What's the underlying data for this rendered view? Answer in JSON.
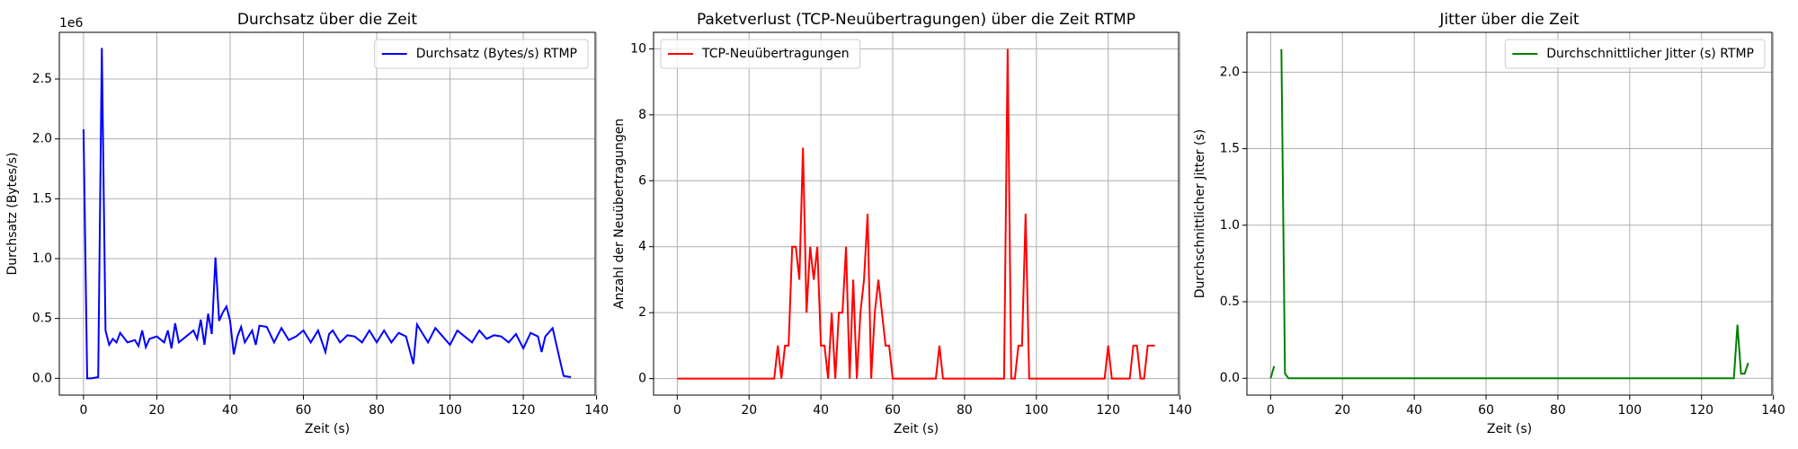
{
  "chart_data": [
    {
      "type": "line",
      "title": "Durchsatz über die Zeit",
      "xlabel": "Zeit (s)",
      "ylabel": "Durchsatz (Bytes/s)",
      "y_offset_label": "1e6",
      "x": [
        0,
        1,
        2,
        4,
        5,
        6,
        7,
        8,
        9,
        10,
        12,
        14,
        15,
        16,
        17,
        18,
        20,
        22,
        23,
        24,
        25,
        26,
        28,
        30,
        31,
        32,
        33,
        34,
        35,
        36,
        37,
        38,
        39,
        40,
        41,
        42,
        43,
        44,
        46,
        47,
        48,
        50,
        52,
        54,
        56,
        58,
        60,
        62,
        64,
        66,
        67,
        68,
        70,
        72,
        74,
        76,
        78,
        80,
        82,
        84,
        86,
        88,
        90,
        91,
        92,
        94,
        96,
        98,
        100,
        102,
        104,
        106,
        108,
        110,
        112,
        114,
        116,
        118,
        120,
        122,
        124,
        125,
        126,
        128,
        130,
        131,
        133
      ],
      "series": [
        {
          "name": "Durchsatz (Bytes/s) RTMP",
          "color": "#0000ff",
          "values": [
            2.08,
            0,
            0,
            0.01,
            2.76,
            0.4,
            0.28,
            0.33,
            0.3,
            0.38,
            0.3,
            0.32,
            0.27,
            0.4,
            0.26,
            0.33,
            0.35,
            0.3,
            0.4,
            0.25,
            0.46,
            0.3,
            0.35,
            0.4,
            0.33,
            0.49,
            0.28,
            0.54,
            0.37,
            1.01,
            0.48,
            0.55,
            0.6,
            0.48,
            0.2,
            0.35,
            0.43,
            0.3,
            0.4,
            0.28,
            0.44,
            0.43,
            0.3,
            0.42,
            0.32,
            0.35,
            0.4,
            0.3,
            0.4,
            0.22,
            0.37,
            0.4,
            0.3,
            0.36,
            0.35,
            0.3,
            0.4,
            0.3,
            0.4,
            0.3,
            0.38,
            0.35,
            0.12,
            0.45,
            0.4,
            0.3,
            0.42,
            0.35,
            0.28,
            0.4,
            0.35,
            0.3,
            0.4,
            0.33,
            0.36,
            0.35,
            0.3,
            0.37,
            0.25,
            0.38,
            0.35,
            0.22,
            0.35,
            0.42,
            0.15,
            0.02,
            0.01
          ]
        }
      ],
      "xlim": [
        -6.6,
        139.6
      ],
      "ylim": [
        -0.14,
        2.89
      ],
      "xticks": [
        0,
        20,
        40,
        60,
        80,
        100,
        120,
        140
      ],
      "yticks": [
        {
          "value": 0,
          "label": "0.0"
        },
        0.5,
        {
          "value": 1,
          "label": "1.0"
        },
        1.5,
        {
          "value": 2,
          "label": "2.0"
        },
        2.5
      ],
      "grid": true,
      "legend": "upper right"
    },
    {
      "type": "line",
      "title": "Paketverlust (TCP-Neuübertragungen) über die Zeit RTMP",
      "xlabel": "Zeit (s)",
      "ylabel": "Anzahl der Neuübertragungen",
      "x": [
        0,
        27,
        28,
        29,
        30,
        31,
        32,
        33,
        34,
        35,
        36,
        37,
        38,
        39,
        40,
        41,
        42,
        43,
        44,
        45,
        46,
        47,
        48,
        49,
        50,
        51,
        52,
        53,
        54,
        55,
        56,
        57,
        58,
        59,
        60,
        72,
        73,
        74,
        91,
        92,
        93,
        94,
        95,
        96,
        97,
        98,
        119,
        120,
        121,
        126,
        127,
        128,
        129,
        130,
        131,
        132,
        133
      ],
      "series": [
        {
          "name": "TCP-Neuübertragungen",
          "color": "#ff0000",
          "values": [
            0,
            0,
            1,
            0,
            1,
            1,
            4,
            4,
            3,
            7,
            2,
            4,
            3,
            4,
            1,
            1,
            0,
            2,
            0,
            2,
            2,
            4,
            0,
            3,
            0,
            2,
            3,
            5,
            0,
            2,
            3,
            2,
            1,
            1,
            0,
            0,
            1,
            0,
            0,
            10,
            0,
            0,
            1,
            1,
            5,
            0,
            0,
            1,
            0,
            0,
            1,
            1,
            0,
            0,
            1,
            1,
            1
          ]
        }
      ],
      "xlim": [
        -6.6,
        139.6
      ],
      "ylim": [
        -0.5,
        10.5
      ],
      "xticks": [
        0,
        20,
        40,
        60,
        80,
        100,
        120,
        140
      ],
      "yticks": [
        0,
        2,
        4,
        6,
        8,
        10
      ],
      "grid": true,
      "legend": "upper left"
    },
    {
      "type": "line",
      "title": "Jitter über die Zeit",
      "xlabel": "Zeit (s)",
      "ylabel": "Durchschnittlicher Jitter (s)",
      "x": [
        0,
        1,
        2,
        3,
        4,
        5,
        129,
        130,
        131,
        132,
        133
      ],
      "series": [
        {
          "name": "Durchschnittlicher Jitter (s) RTMP",
          "color": "#008000",
          "values": [
            0,
            0.08,
            null,
            2.15,
            0.03,
            0,
            0,
            0.35,
            0.03,
            0.03,
            0.1
          ]
        }
      ],
      "xlim": [
        -6.6,
        139.6
      ],
      "ylim": [
        -0.11,
        2.26
      ],
      "xticks": [
        0,
        20,
        40,
        60,
        80,
        100,
        120,
        140
      ],
      "yticks": [
        {
          "value": 0,
          "label": "0.0"
        },
        0.5,
        {
          "value": 1,
          "label": "1.0"
        },
        1.5,
        {
          "value": 2,
          "label": "2.0"
        }
      ],
      "grid": true,
      "legend": "upper right"
    }
  ]
}
